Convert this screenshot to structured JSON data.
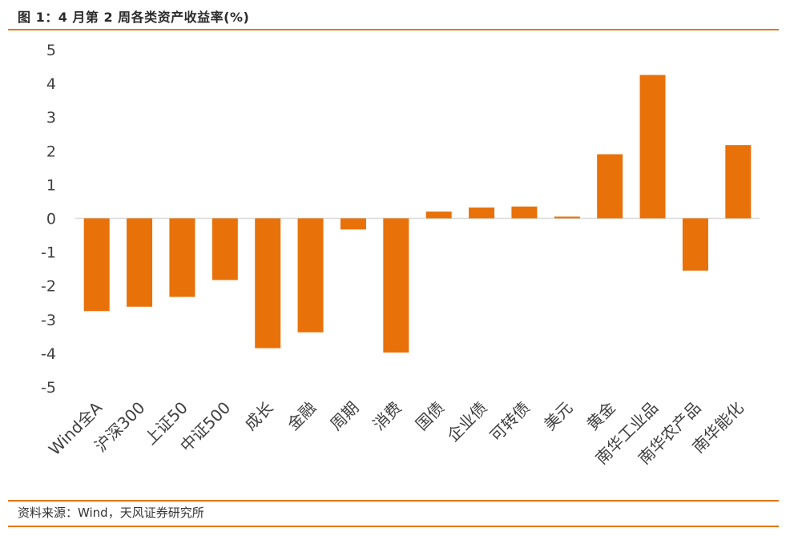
{
  "header": {
    "title": "图 1：4 月第 2 周各类资产收益率(%)"
  },
  "footer": {
    "source": "资料来源：Wind，天风证券研究所"
  },
  "colors": {
    "bar": "#E8710A",
    "rule": "#E7750E",
    "axis": "#D9D9D9",
    "text": "#404040"
  },
  "chart_data": {
    "type": "bar",
    "title": "图 1：4 月第 2 周各类资产收益率(%)",
    "categories": [
      "Wind全A",
      "沪深300",
      "上证50",
      "中证500",
      "成长",
      "金融",
      "周期",
      "消费",
      "国债",
      "企业债",
      "可转债",
      "美元",
      "黄金",
      "南华工业品",
      "南华农产品",
      "南华能化"
    ],
    "values": [
      -2.75,
      -2.62,
      -2.33,
      -1.83,
      -3.85,
      -3.38,
      -0.33,
      -3.98,
      0.2,
      0.32,
      0.35,
      0.05,
      1.9,
      4.25,
      -1.55,
      2.17
    ],
    "ylim": [
      -5,
      5
    ],
    "yticks": [
      "5",
      "4",
      "3",
      "2",
      "1",
      "0",
      "-1",
      "-2",
      "-3",
      "-4",
      "-5"
    ],
    "grid": false,
    "legend": "none"
  }
}
